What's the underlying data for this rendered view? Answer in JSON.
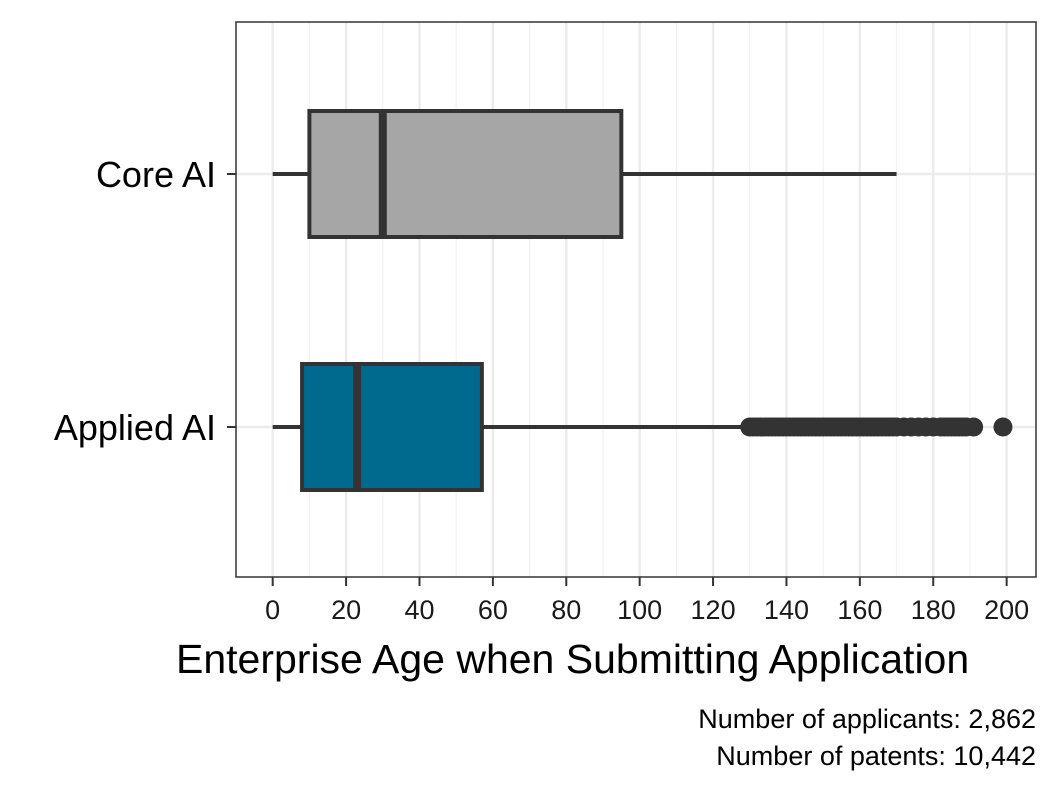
{
  "chart_data": {
    "type": "boxplot",
    "orientation": "horizontal",
    "xlabel": "Enterprise Age when Submitting Application",
    "ylabel": "",
    "xlim": [
      -10,
      208
    ],
    "xticks": [
      0,
      20,
      40,
      60,
      80,
      100,
      120,
      140,
      160,
      180,
      200
    ],
    "grid": true,
    "categories": [
      "Core AI",
      "Applied AI"
    ],
    "boxes": [
      {
        "category": "Core AI",
        "color": "#a6a6a6",
        "whisker_low": 0,
        "q1": 10,
        "median": 30,
        "q3": 95,
        "whisker_high": 170,
        "outliers": []
      },
      {
        "category": "Applied AI",
        "color": "#006a8e",
        "whisker_low": 0,
        "q1": 8,
        "median": 23,
        "q3": 57,
        "whisker_high": 130,
        "outliers": [
          130,
          131,
          132,
          133,
          134,
          135,
          136,
          137,
          138,
          139,
          140,
          141,
          142,
          143,
          144,
          145,
          146,
          147,
          148,
          149,
          150,
          151,
          152,
          153,
          154,
          155,
          156,
          157,
          158,
          159,
          160,
          161,
          162,
          163,
          164,
          165,
          166,
          167,
          168,
          169,
          170,
          172,
          174,
          176,
          178,
          180,
          182,
          183,
          184,
          185,
          186,
          187,
          188,
          189,
          191,
          199
        ]
      }
    ],
    "captions": [
      "Number of applicants: 2,862",
      "Number of patents: 10,442"
    ]
  }
}
